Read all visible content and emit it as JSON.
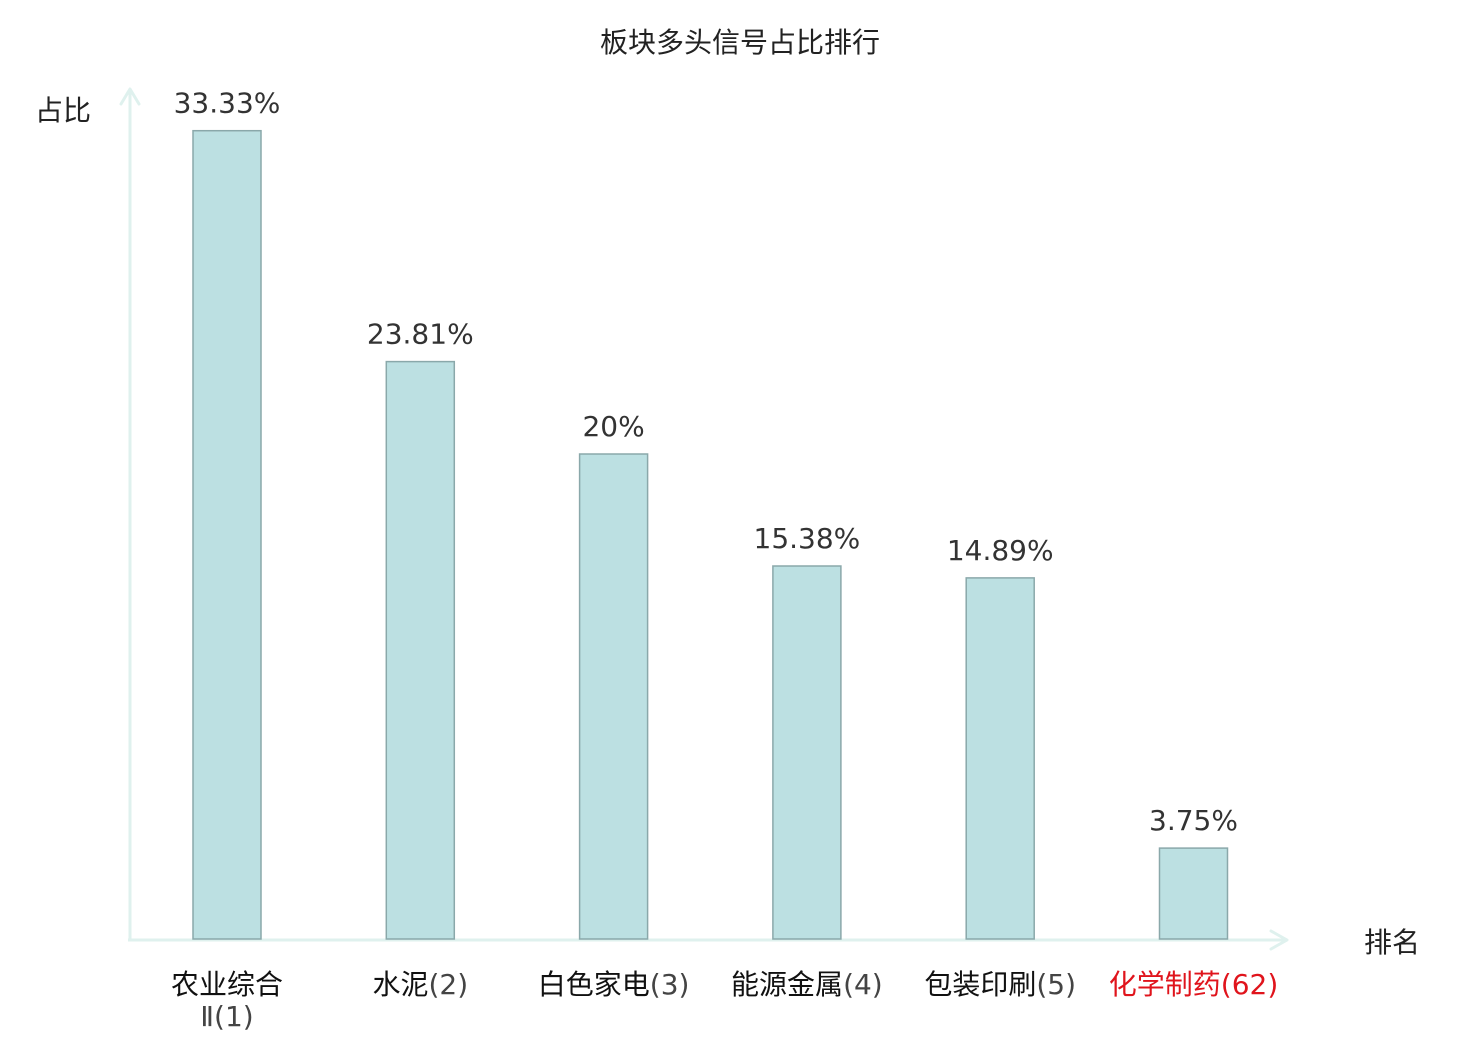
{
  "chart_data": {
    "type": "bar",
    "title": "板块多头信号占比排行",
    "ylabel": "占比",
    "xlabel": "排名",
    "ylim": [
      0,
      36
    ],
    "categories": [
      {
        "name": "农业综合Ⅱ",
        "rank": "(1)",
        "highlight": false
      },
      {
        "name": "水泥",
        "rank": "(2)",
        "highlight": false
      },
      {
        "name": "白色家电",
        "rank": "(3)",
        "highlight": false
      },
      {
        "name": "能源金属",
        "rank": "(4)",
        "highlight": false
      },
      {
        "name": "包装印刷",
        "rank": "(5)",
        "highlight": false
      },
      {
        "name": "化学制药",
        "rank": "(62)",
        "highlight": true
      }
    ],
    "values": [
      33.33,
      23.81,
      20,
      15.38,
      14.89,
      3.75
    ],
    "value_labels": [
      "33.33%",
      "23.81%",
      "20%",
      "15.38%",
      "14.89%",
      "3.75%"
    ],
    "grid": false,
    "legend": "none"
  },
  "colors": {
    "bar_fill": "#bce0e2",
    "bar_stroke": "#8aa8aa",
    "axis": "#dff1ee",
    "name_text": "#111111",
    "rank_text": "#444444",
    "highlight_text": "#e0141c",
    "value_text": "#333333",
    "title_text": "#222222"
  }
}
